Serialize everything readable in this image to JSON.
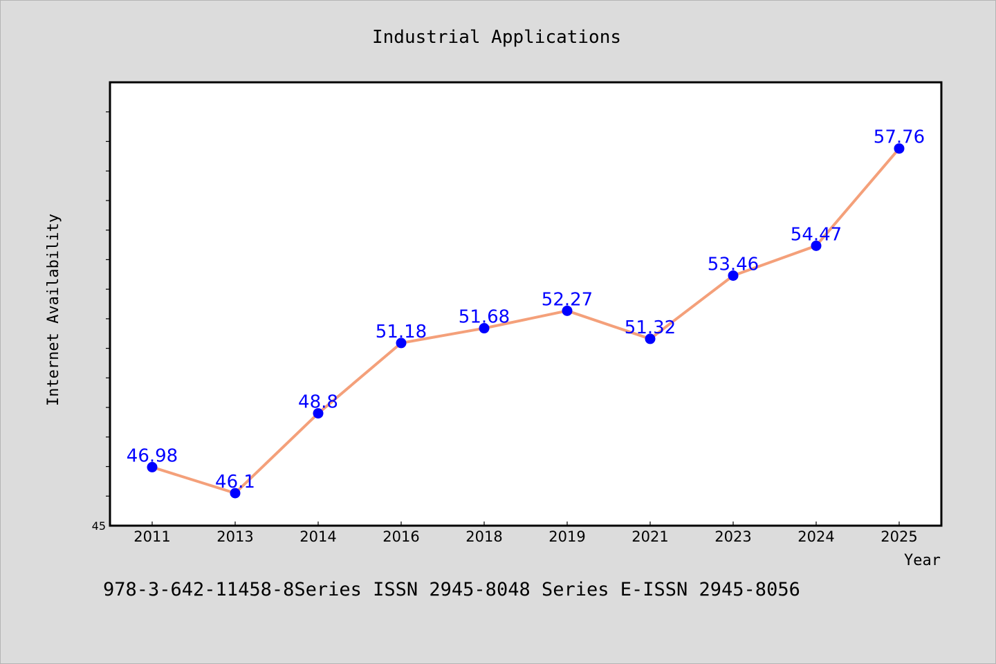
{
  "chart_data": {
    "type": "line",
    "title": "Industrial Applications",
    "xlabel": "Year",
    "ylabel": "Internet Availability",
    "categories": [
      "2011",
      "2013",
      "2014",
      "2016",
      "2018",
      "2019",
      "2021",
      "2023",
      "2024",
      "2025"
    ],
    "series": [
      {
        "values": [
          46.98,
          46.1,
          48.8,
          51.18,
          51.68,
          52.27,
          51.32,
          53.46,
          54.47,
          57.76
        ],
        "data_labels": [
          "46.98",
          "46.1",
          "48.8",
          "51.18",
          "51.68",
          "52.27",
          "51.32",
          "53.46",
          "54.47",
          "57.76"
        ],
        "line_color": "#f4a07a",
        "marker_color": "#0000ff",
        "label_color": "#0000ff"
      }
    ],
    "y_tick_labels": [
      "45"
    ],
    "ylim": [
      45,
      60
    ],
    "grid": false,
    "legend": "none"
  },
  "footer_text": "978-3-642-11458-8Series ISSN 2945-8048 Series E-ISSN 2945-8056"
}
